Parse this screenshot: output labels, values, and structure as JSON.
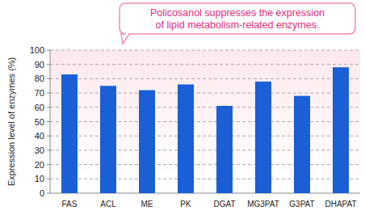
{
  "chart_data": {
    "type": "bar",
    "annotation": [
      "Policosanol suppresses the expression",
      "of lipid metabolism-related enzymes."
    ],
    "y_label": "Expression level of enzymes (%)",
    "categories": [
      "FAS",
      "ACL",
      "ME",
      "PK",
      "DGAT",
      "MG3PAT",
      "G3PAT",
      "DHAPAT"
    ],
    "values": [
      83,
      75,
      72,
      76,
      61,
      78,
      68,
      88
    ],
    "color": "#1a5fd6",
    "ylim": [
      0,
      100
    ],
    "yticks": [
      0,
      10,
      20,
      30,
      40,
      50,
      60,
      70,
      80,
      90,
      100
    ],
    "grid": true
  }
}
